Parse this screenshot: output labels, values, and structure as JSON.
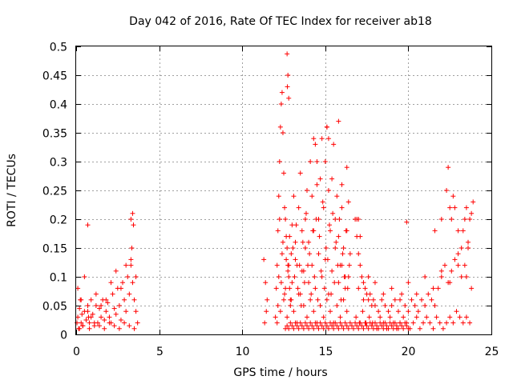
{
  "chart_data": {
    "type": "scatter",
    "title": "Day 042 of 2016, Rate Of TEC Index for receiver ab18",
    "xlabel": "GPS time / hours",
    "ylabel": "ROTI / TECUs",
    "xlim": [
      0,
      25
    ],
    "ylim": [
      0,
      0.5
    ],
    "xticks": [
      "0",
      "5",
      "10",
      "15",
      "20",
      "25"
    ],
    "yticks": [
      "0",
      "0.05",
      "0.1",
      "0.15",
      "0.2",
      "0.25",
      "0.3",
      "0.35",
      "0.4",
      "0.45",
      "0.5"
    ],
    "grid": true,
    "marker": "+",
    "color": "#ff0000",
    "series": [
      {
        "x": [
          0.05,
          0.1,
          0.15,
          0.2,
          0.25,
          0.3,
          0.35,
          0.4,
          0.5,
          0.6,
          0.7,
          0.75,
          0.8,
          0.9,
          1.0,
          1.1,
          1.2,
          1.3,
          1.4,
          1.5,
          1.6,
          1.7,
          1.8,
          1.9,
          2.0,
          2.1,
          2.2,
          2.3,
          2.4,
          2.5,
          2.6,
          2.7,
          2.8,
          2.9,
          3.0,
          3.1,
          3.2,
          3.3,
          3.35,
          3.4,
          3.5,
          3.6,
          3.7,
          0.1,
          0.3,
          0.5,
          0.7,
          0.9,
          1.2,
          1.5,
          1.8,
          2.1,
          2.4,
          2.7,
          3.0,
          3.3,
          3.6,
          0.2,
          0.4,
          0.8,
          1.1,
          1.4,
          1.7,
          2.0,
          2.3,
          2.6,
          2.9,
          3.2,
          3.5,
          11.3,
          11.4,
          11.5,
          11.35,
          11.45,
          12.0,
          12.05,
          12.1,
          12.15,
          12.2,
          12.25,
          12.3,
          12.35,
          12.4,
          12.45,
          12.5,
          12.55,
          12.6,
          12.65,
          12.7,
          12.75,
          12.8,
          12.85,
          12.9,
          12.95,
          13.0,
          13.1,
          13.2,
          13.3,
          13.4,
          13.5,
          13.6,
          13.7,
          13.8,
          13.9,
          14.0,
          14.1,
          14.2,
          14.3,
          14.4,
          14.5,
          14.6,
          14.7,
          14.8,
          14.9,
          15.0,
          15.1,
          15.2,
          15.3,
          15.4,
          15.5,
          15.6,
          15.7,
          15.8,
          15.9,
          16.0,
          16.1,
          16.2,
          16.3,
          16.4,
          16.5,
          12.1,
          12.3,
          12.5,
          12.7,
          12.9,
          13.1,
          13.3,
          13.5,
          13.7,
          13.9,
          14.1,
          14.3,
          14.5,
          14.7,
          14.9,
          15.1,
          15.3,
          15.5,
          15.7,
          15.9,
          16.1,
          16.3,
          12.2,
          12.4,
          12.6,
          12.8,
          13.0,
          13.2,
          13.4,
          13.6,
          13.8,
          14.0,
          14.2,
          14.4,
          14.6,
          14.8,
          15.0,
          15.2,
          15.4,
          15.6,
          15.8,
          16.0,
          16.2,
          16.4,
          12.15,
          12.35,
          12.55,
          12.75,
          12.95,
          13.15,
          13.35,
          13.55,
          13.75,
          13.95,
          14.15,
          14.35,
          14.55,
          14.75,
          14.95,
          15.15,
          15.35,
          15.55,
          15.75,
          15.95,
          16.15,
          16.35,
          12.25,
          12.45,
          12.65,
          12.85,
          13.05,
          13.25,
          13.45,
          13.65,
          13.85,
          14.05,
          14.25,
          14.45,
          14.65,
          14.85,
          15.05,
          15.25,
          15.45,
          15.65,
          15.85,
          16.05,
          16.25,
          16.45,
          16.8,
          16.9,
          17.0,
          17.1,
          17.2,
          17.3,
          17.4,
          17.5,
          17.6,
          17.7,
          17.8,
          17.9,
          18.0,
          18.2,
          18.4,
          18.6,
          18.8,
          19.0,
          19.2,
          19.4,
          19.6,
          19.8,
          20.0,
          20.2,
          20.4,
          20.6,
          20.8,
          21.0,
          21.2,
          21.4,
          21.6,
          21.8,
          22.0,
          22.2,
          22.4,
          22.6,
          22.8,
          23.0,
          23.2,
          23.4,
          23.6,
          23.8,
          16.85,
          17.05,
          17.25,
          17.45,
          17.65,
          17.85,
          18.1,
          18.3,
          18.5,
          18.7,
          18.9,
          19.1,
          19.3,
          19.5,
          19.7,
          19.9,
          20.1,
          20.3,
          20.5,
          20.7,
          20.9,
          21.1,
          21.3,
          21.5,
          21.7,
          21.9,
          22.1,
          22.3,
          22.5,
          22.7,
          22.9,
          23.1,
          23.3,
          23.5,
          23.7,
          17.0,
          17.3,
          17.6,
          18.0,
          18.5,
          19.0,
          19.5,
          20.0,
          20.5,
          21.0,
          21.5,
          22.0,
          22.5,
          23.0,
          23.5,
          12.6,
          12.7,
          12.8,
          12.9,
          13.0,
          13.1,
          13.2,
          13.3,
          13.4,
          13.5,
          13.6,
          13.7,
          13.8,
          13.9,
          14.0,
          14.1,
          14.2,
          14.3,
          14.4,
          14.5,
          14.6,
          14.7,
          14.8,
          14.9,
          15.0,
          15.1,
          15.2,
          15.3,
          15.4,
          15.5,
          15.6,
          15.7,
          15.8,
          15.9,
          16.0,
          16.1,
          16.2,
          16.3,
          16.4,
          16.5,
          16.6,
          16.7,
          16.8,
          16.9,
          17.0,
          17.1,
          17.2,
          17.3,
          17.4,
          17.5,
          17.6,
          17.7,
          17.8,
          17.9,
          18.0,
          18.1,
          18.2,
          18.3,
          18.4,
          18.5,
          18.6,
          18.7,
          18.8,
          18.9,
          19.0,
          19.1,
          19.2,
          19.3,
          19.4,
          19.5,
          19.6,
          19.7,
          19.8,
          19.9,
          20.0,
          15.8,
          21.6,
          22.0,
          22.4,
          22.6,
          22.8,
          23.0,
          23.2,
          23.4,
          23.6,
          23.8,
          23.9,
          0.7,
          3.3,
          3.4,
          3.45,
          12.7,
          12.75,
          12.8,
          12.72,
          14.3,
          14.5,
          15.1,
          15.2,
          16.0,
          16.3,
          16.9,
          17.0,
          17.1,
          19.9,
          22.3,
          22.5,
          22.7,
          23.3,
          23.5,
          23.7
        ],
        "y": [
          0.02,
          0.03,
          0.01,
          0.045,
          0.06,
          0.02,
          0.035,
          0.015,
          0.04,
          0.025,
          0.05,
          0.03,
          0.02,
          0.06,
          0.035,
          0.015,
          0.05,
          0.02,
          0.045,
          0.03,
          0.06,
          0.025,
          0.04,
          0.055,
          0.03,
          0.02,
          0.07,
          0.045,
          0.035,
          0.08,
          0.05,
          0.025,
          0.09,
          0.06,
          0.04,
          0.1,
          0.07,
          0.12,
          0.15,
          0.09,
          0.06,
          0.04,
          0.02,
          0.08,
          0.06,
          0.1,
          0.04,
          0.03,
          0.07,
          0.05,
          0.06,
          0.09,
          0.11,
          0.08,
          0.12,
          0.13,
          0.1,
          0.01,
          0.015,
          0.01,
          0.02,
          0.015,
          0.01,
          0.02,
          0.015,
          0.01,
          0.02,
          0.015,
          0.01,
          0.13,
          0.09,
          0.06,
          0.02,
          0.04,
          0.03,
          0.08,
          0.12,
          0.18,
          0.24,
          0.3,
          0.36,
          0.4,
          0.42,
          0.35,
          0.28,
          0.22,
          0.2,
          0.17,
          0.15,
          0.12,
          0.1,
          0.08,
          0.06,
          0.14,
          0.19,
          0.24,
          0.16,
          0.12,
          0.22,
          0.28,
          0.18,
          0.11,
          0.2,
          0.25,
          0.16,
          0.3,
          0.24,
          0.18,
          0.33,
          0.26,
          0.2,
          0.27,
          0.34,
          0.22,
          0.3,
          0.36,
          0.25,
          0.18,
          0.27,
          0.33,
          0.2,
          0.24,
          0.17,
          0.12,
          0.22,
          0.15,
          0.1,
          0.18,
          0.23,
          0.14,
          0.02,
          0.04,
          0.06,
          0.03,
          0.05,
          0.04,
          0.02,
          0.07,
          0.05,
          0.03,
          0.06,
          0.04,
          0.02,
          0.05,
          0.03,
          0.06,
          0.04,
          0.02,
          0.05,
          0.03,
          0.06,
          0.04,
          0.1,
          0.14,
          0.08,
          0.12,
          0.09,
          0.13,
          0.07,
          0.11,
          0.15,
          0.09,
          0.12,
          0.08,
          0.14,
          0.1,
          0.13,
          0.07,
          0.11,
          0.15,
          0.09,
          0.12,
          0.08,
          0.1,
          0.05,
          0.09,
          0.07,
          0.11,
          0.06,
          0.1,
          0.08,
          0.05,
          0.09,
          0.12,
          0.07,
          0.1,
          0.06,
          0.11,
          0.08,
          0.13,
          0.07,
          0.09,
          0.12,
          0.06,
          0.1,
          0.08,
          0.2,
          0.16,
          0.13,
          0.17,
          0.15,
          0.19,
          0.12,
          0.16,
          0.21,
          0.14,
          0.18,
          0.2,
          0.17,
          0.23,
          0.15,
          0.19,
          0.21,
          0.16,
          0.2,
          0.14,
          0.18,
          0.12,
          0.2,
          0.17,
          0.14,
          0.12,
          0.1,
          0.09,
          0.08,
          0.07,
          0.06,
          0.07,
          0.05,
          0.06,
          0.05,
          0.04,
          0.06,
          0.05,
          0.04,
          0.05,
          0.06,
          0.04,
          0.07,
          0.05,
          0.04,
          0.06,
          0.05,
          0.04,
          0.06,
          0.05,
          0.07,
          0.06,
          0.05,
          0.08,
          0.1,
          0.12,
          0.09,
          0.11,
          0.13,
          0.14,
          0.1,
          0.12,
          0.15,
          0.08,
          0.03,
          0.02,
          0.04,
          0.02,
          0.03,
          0.02,
          0.01,
          0.03,
          0.02,
          0.01,
          0.03,
          0.02,
          0.01,
          0.02,
          0.03,
          0.02,
          0.01,
          0.02,
          0.03,
          0.01,
          0.02,
          0.03,
          0.02,
          0.01,
          0.03,
          0.02,
          0.01,
          0.02,
          0.03,
          0.02,
          0.04,
          0.03,
          0.02,
          0.03,
          0.02,
          0.08,
          0.06,
          0.1,
          0.09,
          0.07,
          0.08,
          0.06,
          0.09,
          0.07,
          0.1,
          0.08,
          0.11,
          0.09,
          0.12,
          0.1,
          0.01,
          0.015,
          0.01,
          0.02,
          0.015,
          0.01,
          0.02,
          0.015,
          0.01,
          0.02,
          0.015,
          0.01,
          0.02,
          0.015,
          0.01,
          0.02,
          0.015,
          0.01,
          0.02,
          0.015,
          0.01,
          0.02,
          0.015,
          0.01,
          0.02,
          0.015,
          0.01,
          0.02,
          0.015,
          0.01,
          0.02,
          0.015,
          0.01,
          0.02,
          0.015,
          0.01,
          0.02,
          0.015,
          0.01,
          0.02,
          0.015,
          0.01,
          0.02,
          0.015,
          0.01,
          0.02,
          0.015,
          0.01,
          0.02,
          0.015,
          0.01,
          0.02,
          0.015,
          0.01,
          0.02,
          0.015,
          0.01,
          0.02,
          0.015,
          0.01,
          0.02,
          0.015,
          0.01,
          0.02,
          0.015,
          0.01,
          0.02,
          0.015,
          0.01,
          0.02,
          0.015,
          0.01,
          0.02,
          0.015,
          0.01,
          0.37,
          0.18,
          0.2,
          0.29,
          0.2,
          0.22,
          0.18,
          0.15,
          0.2,
          0.16,
          0.21,
          0.23,
          0.19,
          0.2,
          0.21,
          0.19,
          0.487,
          0.45,
          0.41,
          0.43,
          0.34,
          0.3,
          0.36,
          0.34,
          0.26,
          0.29,
          0.2,
          0.2,
          0.17,
          0.195,
          0.25,
          0.22,
          0.24,
          0.18,
          0.22,
          0.2
        ]
      }
    ]
  }
}
